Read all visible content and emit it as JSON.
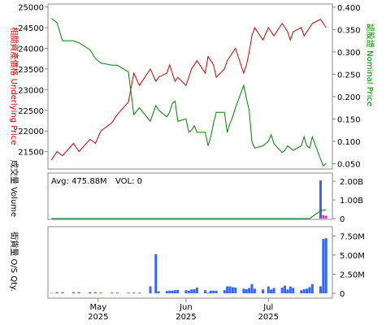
{
  "chart_data": [
    {
      "type": "line",
      "x_dates": [
        "2025-04-14",
        "2025-04-16",
        "2025-04-18",
        "2025-04-22",
        "2025-04-24",
        "2025-04-28",
        "2025-04-30",
        "2025-05-02",
        "2025-05-06",
        "2025-05-08",
        "2025-05-12",
        "2025-05-14",
        "2025-05-16",
        "2025-05-20",
        "2025-05-22",
        "2025-05-23",
        "2025-05-26",
        "2025-05-27",
        "2025-05-28",
        "2025-05-29",
        "2025-05-30",
        "2025-06-02",
        "2025-06-03",
        "2025-06-04",
        "2025-06-05",
        "2025-06-06",
        "2025-06-09",
        "2025-06-10",
        "2025-06-11",
        "2025-06-12",
        "2025-06-13",
        "2025-06-16",
        "2025-06-17",
        "2025-06-18",
        "2025-06-19",
        "2025-06-20",
        "2025-06-23",
        "2025-06-24",
        "2025-06-25",
        "2025-06-26",
        "2025-06-27",
        "2025-06-30",
        "2025-07-02",
        "2025-07-03",
        "2025-07-04",
        "2025-07-07",
        "2025-07-08",
        "2025-07-09",
        "2025-07-10",
        "2025-07-11",
        "2025-07-14",
        "2025-07-15",
        "2025-07-16",
        "2025-07-17",
        "2025-07-18",
        "2025-07-21",
        "2025-07-22",
        "2025-07-23"
      ],
      "series": [
        {
          "name": "",
          "axis": "left",
          "color": "#cc0000",
          "values": [
            21300,
            21500,
            21400,
            21700,
            21500,
            21800,
            21700,
            22000,
            22200,
            22400,
            22700,
            23400,
            23100,
            23500,
            23200,
            23300,
            23400,
            23600,
            23400,
            23200,
            23300,
            23100,
            23300,
            23500,
            23600,
            23700,
            23400,
            23800,
            23700,
            23600,
            23300,
            23500,
            23700,
            23800,
            23900,
            24000,
            23400,
            23600,
            23900,
            24300,
            24500,
            24200,
            24500,
            24400,
            24300,
            24600,
            24500,
            24400,
            24200,
            24400,
            24500,
            24300,
            24400,
            24500,
            24600,
            24700,
            24600,
            24500
          ]
        },
        {
          "name": "",
          "axis": "right",
          "color": "#008000",
          "values": [
            0.375,
            0.365,
            0.325,
            0.325,
            0.32,
            0.305,
            0.285,
            0.275,
            0.27,
            0.27,
            0.255,
            0.16,
            0.175,
            0.145,
            0.18,
            0.17,
            0.155,
            0.165,
            0.185,
            0.19,
            0.145,
            0.15,
            0.12,
            0.125,
            0.135,
            0.12,
            0.12,
            0.09,
            0.11,
            0.14,
            0.165,
            0.165,
            0.12,
            0.14,
            0.155,
            0.175,
            0.225,
            0.195,
            0.17,
            0.1,
            0.085,
            0.09,
            0.1,
            0.115,
            0.095,
            0.075,
            0.08,
            0.09,
            0.085,
            0.08,
            0.09,
            0.11,
            0.09,
            0.085,
            0.11,
            0.06,
            0.045,
            0.05
          ]
        }
      ],
      "left_ylabel": "相關資產價格 Underlying Price",
      "right_ylabel": "認股證 Nominal Price",
      "left_ticks": [
        "21500",
        "22000",
        "22500",
        "23000",
        "23500",
        "24000",
        "24500",
        "25000"
      ],
      "right_ticks": [
        "0.050",
        "0.100",
        "0.150",
        "0.200",
        "0.250",
        "0.300",
        "0.350",
        "0.400"
      ],
      "left_ylim": [
        21100,
        25050
      ],
      "right_ylim": [
        0.04,
        0.405
      ],
      "grid": false
    },
    {
      "type": "bar",
      "avg_label": "Avg: 475.88M",
      "vol_label": "VOL: 0",
      "ylabel": "成交量 Volume",
      "ticks": [
        "2.00B",
        "1.00B",
        "0"
      ],
      "ylim": [
        0,
        2.4
      ],
      "unit": "B",
      "bar_color": "#3366ff",
      "recent_bar_color": "#cc44cc",
      "avg_line_color": "#008000",
      "bars": [
        {
          "x": "2025-07-21",
          "value": 2.05,
          "color": "#3366ff"
        },
        {
          "x": "2025-07-22",
          "value": 0.18,
          "color": "#cc44cc"
        },
        {
          "x": "2025-07-23",
          "value": 0.15,
          "color": "#cc44cc"
        }
      ],
      "avg_line": [
        {
          "x": "2025-04-14",
          "value": 0.0
        },
        {
          "x": "2025-07-17",
          "value": 0.0
        },
        {
          "x": "2025-07-21",
          "value": 0.42
        },
        {
          "x": "2025-07-23",
          "value": 0.48
        }
      ]
    },
    {
      "type": "bar",
      "ylabel": "街貨量 O/S Qty.",
      "ticks": [
        "7.50M",
        "5.00M",
        "2.50M",
        "0"
      ],
      "ylim": [
        0,
        8.6
      ],
      "unit": "M",
      "bar_color": "#3366ff",
      "x_dates": [
        "2025-04-14",
        "2025-04-16",
        "2025-04-18",
        "2025-04-22",
        "2025-04-24",
        "2025-04-28",
        "2025-04-30",
        "2025-05-02",
        "2025-05-06",
        "2025-05-08",
        "2025-05-12",
        "2025-05-14",
        "2025-05-16",
        "2025-05-20",
        "2025-05-22",
        "2025-05-23",
        "2025-05-26",
        "2025-05-27",
        "2025-05-28",
        "2025-05-29",
        "2025-05-30",
        "2025-06-02",
        "2025-06-03",
        "2025-06-04",
        "2025-06-05",
        "2025-06-06",
        "2025-06-09",
        "2025-06-10",
        "2025-06-11",
        "2025-06-12",
        "2025-06-13",
        "2025-06-16",
        "2025-06-17",
        "2025-06-18",
        "2025-06-19",
        "2025-06-20",
        "2025-06-23",
        "2025-06-24",
        "2025-06-25",
        "2025-06-26",
        "2025-06-27",
        "2025-06-30",
        "2025-07-02",
        "2025-07-03",
        "2025-07-04",
        "2025-07-07",
        "2025-07-08",
        "2025-07-09",
        "2025-07-10",
        "2025-07-11",
        "2025-07-14",
        "2025-07-15",
        "2025-07-16",
        "2025-07-17",
        "2025-07-18",
        "2025-07-21",
        "2025-07-22",
        "2025-07-23"
      ],
      "values": [
        0.05,
        0.15,
        0.15,
        0.15,
        0.15,
        0.15,
        0.15,
        0.1,
        0.1,
        0.1,
        0.1,
        0.1,
        0.1,
        0.9,
        5.1,
        0.25,
        0.3,
        0.35,
        0.35,
        0.4,
        0.45,
        0.4,
        0.35,
        0.5,
        0.55,
        0.75,
        0.4,
        0.1,
        0.35,
        0.35,
        0.35,
        0.4,
        0.9,
        0.9,
        0.8,
        0.75,
        0.6,
        0.55,
        0.7,
        1.2,
        0.6,
        0.5,
        0.9,
        0.5,
        0.7,
        0.75,
        1.0,
        0.5,
        0.9,
        0.7,
        0.4,
        0.55,
        0.6,
        0.8,
        1.2,
        0.9,
        7.1,
        7.2
      ]
    }
  ],
  "x_axis": {
    "ticks": [
      {
        "month": "May",
        "year": "2025",
        "date": "2025-05-01"
      },
      {
        "month": "Jun",
        "year": "2025",
        "date": "2025-06-02"
      },
      {
        "month": "Jul",
        "year": "2025",
        "date": "2025-07-02"
      }
    ],
    "range": [
      "2025-04-13",
      "2025-07-25"
    ]
  }
}
